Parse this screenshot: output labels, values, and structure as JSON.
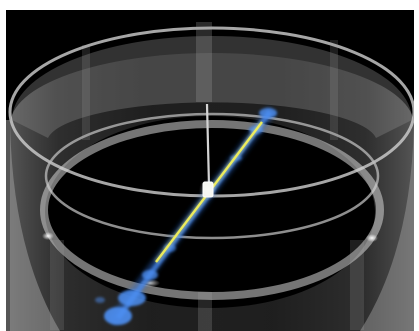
{
  "scene": {
    "description_free": true,
    "colors": {
      "background": "#000000",
      "frame": "#ffffff",
      "cylinder_glass": "#b8b8b8",
      "cylinder_rim": "#d9d9d9",
      "rod": "#cfcfcf",
      "beam_core": "#f2f04a",
      "particles": "#3f7fe0",
      "center_object": "#f4f4ee"
    }
  }
}
